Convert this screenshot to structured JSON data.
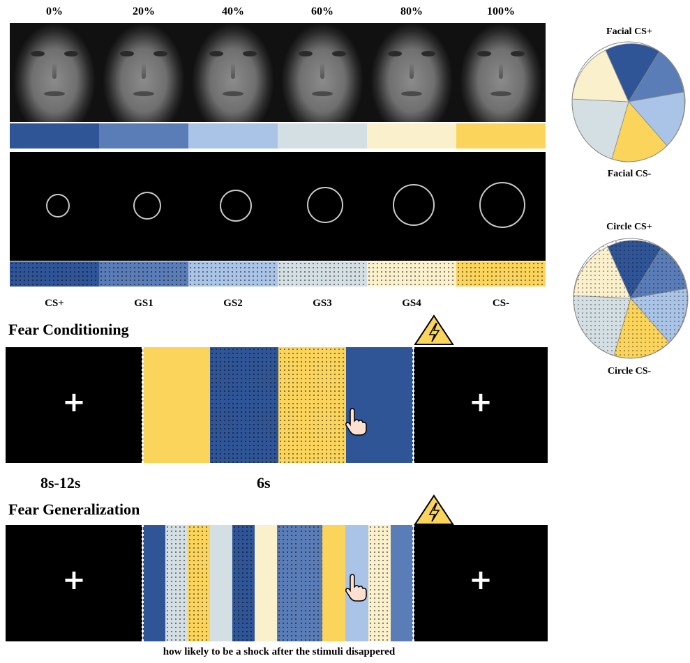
{
  "percent_labels": [
    "0%",
    "20%",
    "40%",
    "60%",
    "80%",
    "100%"
  ],
  "stimulus_labels": [
    "CS+",
    "GS1",
    "GS2",
    "GS3",
    "GS4",
    "CS-"
  ],
  "colors": [
    "#2f5597",
    "#5a7db8",
    "#a9c4e6",
    "#d4dfe4",
    "#fbf0cc",
    "#fbd45c"
  ],
  "sections": {
    "conditioning_title": "Fear Conditioning",
    "generalization_title": "Fear Generalization"
  },
  "timings": {
    "fixation": "8s-12s",
    "stimulus": "6s"
  },
  "fixation_symbol": "+",
  "pies": {
    "facial_top": "Facial CS+",
    "facial_bottom": "Facial CS-",
    "circle_top": "Circle CS+",
    "circle_bottom": "Circle CS-"
  },
  "conditioning_sequence": [
    "CS- solid",
    "CS+ dotted",
    "CS- dotted",
    "CS+ solid"
  ],
  "generalization_sequence": [
    "CS+",
    "GS3",
    "CS-",
    "GS3",
    "CS+",
    "GS4",
    "GS1",
    "GS1",
    "CS-",
    "GS2",
    "GS4",
    "GS1"
  ],
  "footer": "how likely to be a shock after the stimuli disappered",
  "icons": {
    "shock": "lightning-warning-icon",
    "response": "hand-pointer-icon"
  }
}
